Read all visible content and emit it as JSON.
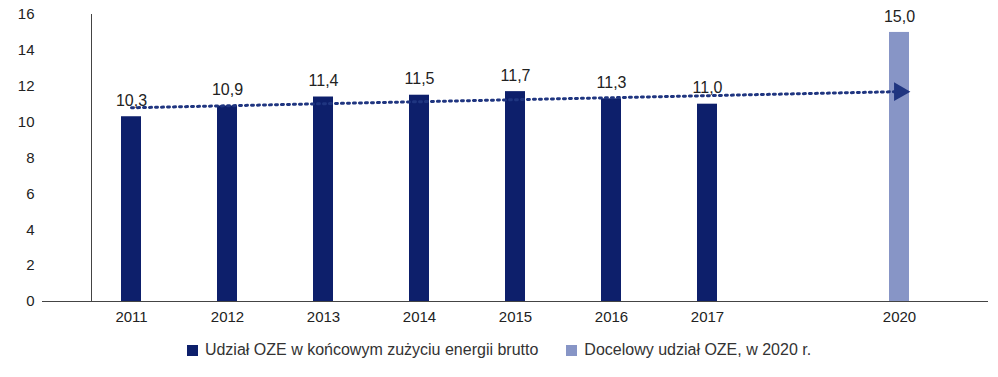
{
  "chart_data": {
    "type": "bar",
    "categories": [
      "2011",
      "2012",
      "2013",
      "2014",
      "2015",
      "2016",
      "2017",
      null,
      "2020"
    ],
    "series": [
      {
        "name": "Udział OZE w końcowym zużyciu energii brutto",
        "color": "#0d1f6b",
        "values": [
          10.3,
          10.9,
          11.4,
          11.5,
          11.7,
          11.3,
          11.0,
          null,
          null
        ],
        "value_labels": [
          "10,3",
          "10,9",
          "11,4",
          "11,5",
          "11,7",
          "11,3",
          "11,0",
          null,
          null
        ]
      },
      {
        "name": "Docelowy udział OZE, w 2020 r.",
        "color": "#8795c6",
        "values": [
          null,
          null,
          null,
          null,
          null,
          null,
          null,
          null,
          15.0
        ],
        "value_labels": [
          null,
          null,
          null,
          null,
          null,
          null,
          null,
          null,
          "15,0"
        ]
      }
    ],
    "trend": {
      "from": "2011",
      "to": "2020",
      "values": [
        10.8,
        11.7
      ],
      "line_style": "dotted",
      "color": "#1f3580"
    },
    "ylim": [
      0,
      16
    ],
    "yticks": [
      0,
      2,
      4,
      6,
      8,
      10,
      12,
      14,
      16
    ],
    "grid": false,
    "data_labels": true,
    "legend": "bottom"
  }
}
